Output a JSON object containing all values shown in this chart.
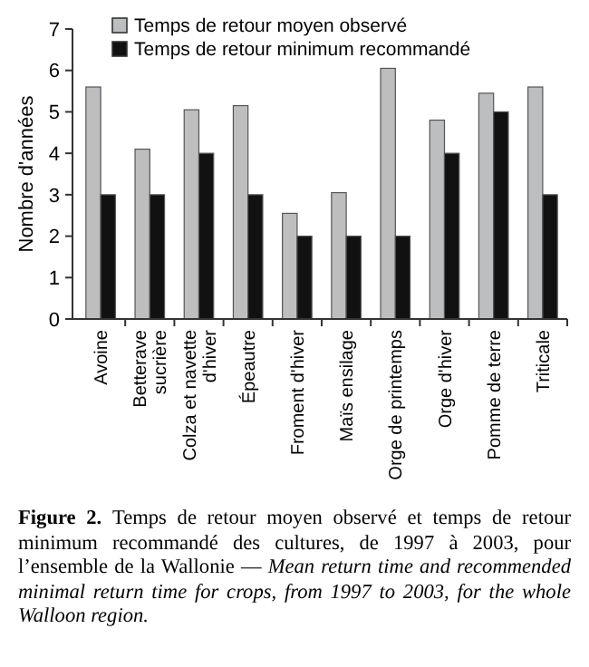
{
  "chart_data": {
    "type": "bar",
    "ylabel": "Nombre d'années",
    "categories": [
      "Avoine",
      "Betterave\nsucrière",
      "Colza et navette\nd'hiver",
      "Épeautre",
      "Froment d'hiver",
      "Maïs ensilage",
      "Orge de printemps",
      "Orge d'hiver",
      "Pomme de terre",
      "Triticale"
    ],
    "series": [
      {
        "name": "Temps de retour moyen observé",
        "color": "#bdbec0",
        "values": [
          5.6,
          4.1,
          5.05,
          5.15,
          2.55,
          3.05,
          6.05,
          4.8,
          5.45,
          5.6
        ]
      },
      {
        "name": "Temps de retour minimum recommandé",
        "color": "#111111",
        "values": [
          3,
          3,
          4,
          3,
          2,
          2,
          2,
          4,
          5,
          3
        ]
      }
    ],
    "ylim": [
      0,
      7
    ],
    "yticks": [
      0,
      1,
      2,
      3,
      4,
      5,
      6,
      7
    ],
    "grid": false,
    "legend": "top left",
    "annotations": [
      "Figure 2.",
      "Temps de retour moyen observé et temps de retour minimum recommandé des cultures, de 1997 à 2003, pour l’ensemble de la Wallonie — ",
      "Mean return time and recommended minimal return time for crops, from 1997 to 2003, for the whole Walloon region."
    ]
  }
}
